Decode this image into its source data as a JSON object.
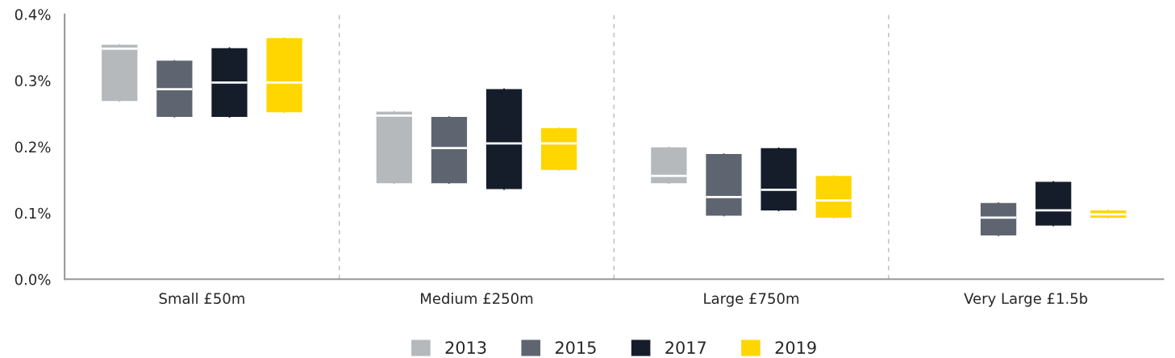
{
  "chart_data": {
    "type": "box",
    "categories": [
      "Small £50m",
      "Medium £250m",
      "Large £750m",
      "Very Large £1.5b"
    ],
    "series": [
      {
        "name": "2013",
        "color": "#b5b9bc",
        "boxes": [
          {
            "low": 0.269,
            "q1": 0.269,
            "median": 0.348,
            "q3": 0.354,
            "high": 0.354
          },
          {
            "low": 0.145,
            "q1": 0.145,
            "median": 0.247,
            "q3": 0.253,
            "high": 0.253
          },
          {
            "low": 0.145,
            "q1": 0.145,
            "median": 0.156,
            "q3": 0.199,
            "high": 0.199
          },
          null
        ]
      },
      {
        "name": "2015",
        "color": "#5f6570",
        "boxes": [
          {
            "low": 0.245,
            "q1": 0.245,
            "median": 0.287,
            "q3": 0.33,
            "high": 0.33
          },
          {
            "low": 0.145,
            "q1": 0.145,
            "median": 0.198,
            "q3": 0.245,
            "high": 0.245
          },
          {
            "low": 0.096,
            "q1": 0.096,
            "median": 0.124,
            "q3": 0.189,
            "high": 0.189
          },
          {
            "low": 0.066,
            "q1": 0.066,
            "median": 0.093,
            "q3": 0.115,
            "high": 0.115
          }
        ]
      },
      {
        "name": "2017",
        "color": "#161d2a",
        "boxes": [
          {
            "low": 0.245,
            "q1": 0.245,
            "median": 0.297,
            "q3": 0.349,
            "high": 0.349
          },
          {
            "low": 0.136,
            "q1": 0.136,
            "median": 0.205,
            "q3": 0.287,
            "high": 0.287
          },
          {
            "low": 0.104,
            "q1": 0.104,
            "median": 0.135,
            "q3": 0.198,
            "high": 0.198
          },
          {
            "low": 0.081,
            "q1": 0.081,
            "median": 0.104,
            "q3": 0.147,
            "high": 0.147
          }
        ]
      },
      {
        "name": "2019",
        "color": "#ffd600",
        "boxes": [
          {
            "low": 0.252,
            "q1": 0.252,
            "median": 0.297,
            "q3": 0.364,
            "high": 0.364
          },
          {
            "low": 0.165,
            "q1": 0.165,
            "median": 0.205,
            "q3": 0.228,
            "high": 0.228
          },
          {
            "low": 0.093,
            "q1": 0.093,
            "median": 0.119,
            "q3": 0.156,
            "high": 0.156
          },
          {
            "low": 0.093,
            "q1": 0.093,
            "median": 0.098,
            "q3": 0.104,
            "high": 0.104
          }
        ]
      }
    ],
    "ylim": [
      0,
      0.4
    ],
    "yticks": [
      {
        "value": 0,
        "label": "0.0%"
      },
      {
        "value": 0.1,
        "label": "0.1%"
      },
      {
        "value": 0.2,
        "label": "0.2%"
      },
      {
        "value": 0.3,
        "label": "0.3%"
      },
      {
        "value": 0.4,
        "label": "0.4%"
      }
    ],
    "grid": false,
    "legend": "bottom"
  }
}
